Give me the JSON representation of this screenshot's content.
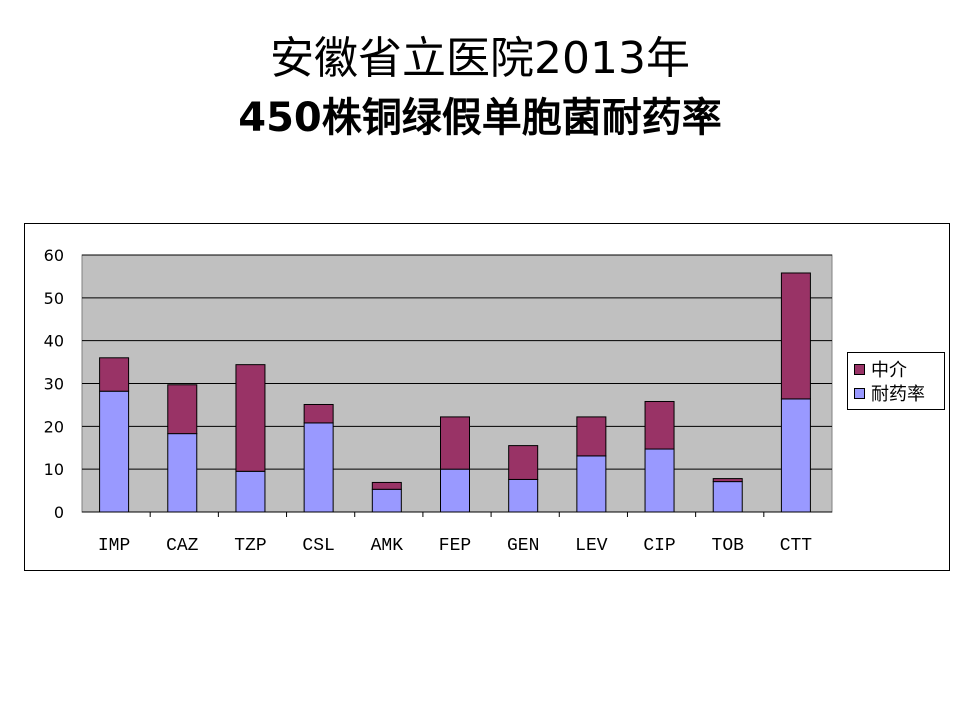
{
  "title": {
    "line1": "安徽省立医院2013年",
    "line2": "450株铜绿假单胞菌耐药率"
  },
  "chart_data": {
    "type": "bar",
    "stacked": true,
    "categories": [
      "IMP",
      "CAZ",
      "TZP",
      "CSL",
      "AMK",
      "FEP",
      "GEN",
      "LEV",
      "CIP",
      "TOB",
      "CTT"
    ],
    "series": [
      {
        "name": "耐药率",
        "color": "#9999ff",
        "values": [
          28.2,
          18.3,
          9.5,
          20.8,
          5.3,
          10.0,
          7.6,
          13.1,
          14.7,
          7.1,
          26.4
        ]
      },
      {
        "name": "中介",
        "color": "#993366",
        "values": [
          7.8,
          11.4,
          24.9,
          4.3,
          1.6,
          12.2,
          7.9,
          9.1,
          11.1,
          0.7,
          29.4
        ]
      }
    ],
    "ylim": [
      0,
      60
    ],
    "yticks": [
      0,
      10,
      20,
      30,
      40,
      50,
      60
    ],
    "grid": true,
    "plot_background": "#c0c0c0",
    "legend_position": "right",
    "legend_order": [
      "中介",
      "耐药率"
    ]
  }
}
